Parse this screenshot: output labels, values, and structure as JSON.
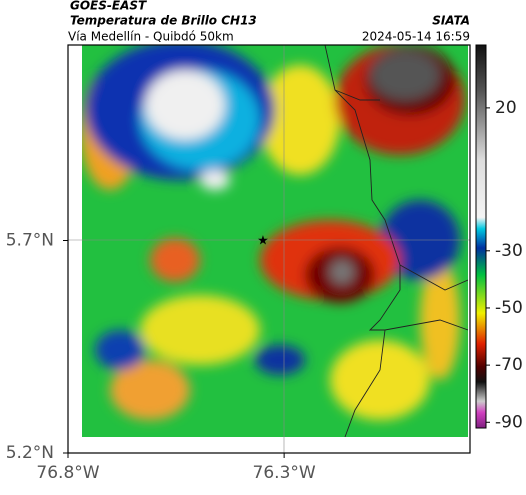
{
  "header": {
    "title": "GOES-EAST",
    "subtitle": "Temperatura de Brillo CH13",
    "caption": "Vía Medellín - Quibdó 50km",
    "source": "SIATA",
    "datetime": "2024-05-14 16:59"
  },
  "map": {
    "xlim": [
      -76.8,
      -75.87
    ],
    "ylim": [
      5.2,
      6.16
    ],
    "xticks": [
      {
        "value": -76.8,
        "label": "76.8°W"
      },
      {
        "value": -76.3,
        "label": "76.3°W"
      }
    ],
    "yticks": [
      {
        "value": 5.7,
        "label": "5.7°N"
      },
      {
        "value": 5.2,
        "label": "5.2°N"
      }
    ]
  },
  "colorbar": {
    "range": [
      42,
      -92
    ],
    "ticks": [
      20,
      -30,
      -50,
      -70,
      -90
    ]
  }
}
